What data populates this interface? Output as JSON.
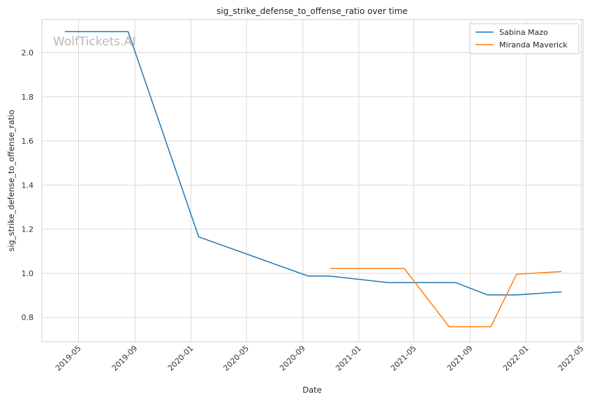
{
  "chart_data": {
    "type": "line",
    "title": "sig_strike_defense_to_offense_ratio over time",
    "xlabel": "Date",
    "ylabel": "sig_strike_defense_to_offense_ratio",
    "watermark": "WolfTickets.AI",
    "x_ticks": [
      "2019-05",
      "2019-09",
      "2020-01",
      "2020-05",
      "2020-09",
      "2021-01",
      "2021-05",
      "2021-09",
      "2022-01",
      "2022-05"
    ],
    "y_ticks": [
      "0.8",
      "1.0",
      "1.2",
      "1.4",
      "1.6",
      "1.8",
      "2.0"
    ],
    "xlim": [
      "2019-02-10",
      "2022-05-05"
    ],
    "ylim": [
      0.69,
      2.15
    ],
    "grid": true,
    "legend_position": "top-right",
    "series": [
      {
        "name": "Sabina Mazo",
        "color": "#1f77b4",
        "points": [
          {
            "x": "2019-04-01",
            "y": 2.095
          },
          {
            "x": "2019-08-17",
            "y": 2.095
          },
          {
            "x": "2020-01-18",
            "y": 1.165
          },
          {
            "x": "2020-09-12",
            "y": 0.988
          },
          {
            "x": "2020-10-28",
            "y": 0.988
          },
          {
            "x": "2021-03-06",
            "y": 0.958
          },
          {
            "x": "2021-07-31",
            "y": 0.958
          },
          {
            "x": "2021-10-09",
            "y": 0.902
          },
          {
            "x": "2021-12-11",
            "y": 0.902
          },
          {
            "x": "2022-03-19",
            "y": 0.916
          }
        ]
      },
      {
        "name": "Miranda Maverick",
        "color": "#ff7f0e",
        "points": [
          {
            "x": "2020-10-31",
            "y": 1.022
          },
          {
            "x": "2021-04-10",
            "y": 1.022
          },
          {
            "x": "2021-07-17",
            "y": 0.758
          },
          {
            "x": "2021-10-16",
            "y": 0.758
          },
          {
            "x": "2021-12-11",
            "y": 0.996
          },
          {
            "x": "2022-03-19",
            "y": 1.008
          }
        ]
      }
    ]
  }
}
